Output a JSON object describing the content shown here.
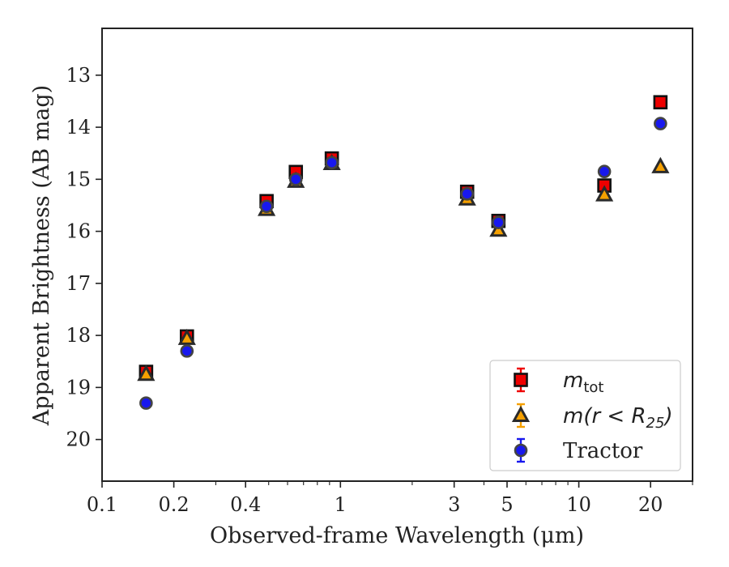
{
  "chart_data": {
    "type": "scatter",
    "x_scale": "log",
    "y_inverted": true,
    "xlim": [
      0.1,
      30
    ],
    "ylim": [
      12.1,
      20.8
    ],
    "x_ticks": [
      {
        "value": 0.1,
        "label": "0.1"
      },
      {
        "value": 0.2,
        "label": "0.2"
      },
      {
        "value": 0.4,
        "label": "0.4"
      },
      {
        "value": 1,
        "label": "1"
      },
      {
        "value": 3,
        "label": "3"
      },
      {
        "value": 5,
        "label": "5"
      },
      {
        "value": 10,
        "label": "10"
      },
      {
        "value": 20,
        "label": "20"
      }
    ],
    "y_ticks": [
      {
        "value": 13,
        "label": "13"
      },
      {
        "value": 14,
        "label": "14"
      },
      {
        "value": 15,
        "label": "15"
      },
      {
        "value": 16,
        "label": "16"
      },
      {
        "value": 17,
        "label": "17"
      },
      {
        "value": 18,
        "label": "18"
      },
      {
        "value": 19,
        "label": "19"
      },
      {
        "value": 20,
        "label": "20"
      }
    ],
    "xlabel": "Observed-frame Wavelength (μm)",
    "ylabel": "Apparent Brightness (AB mag)",
    "legend_position": "lower-right",
    "grid": false,
    "series": [
      {
        "legend": {
          "base": "m",
          "sub": "tot",
          "suffix": ""
        },
        "marker": "square",
        "color": "#ee0000",
        "edge": "#111111",
        "x": [
          0.153,
          0.227,
          0.49,
          0.65,
          0.92,
          3.4,
          4.6,
          12.8,
          22.0
        ],
        "y": [
          18.7,
          18.02,
          15.42,
          14.86,
          14.6,
          15.24,
          15.8,
          15.12,
          13.52
        ]
      },
      {
        "legend": {
          "base": "m(r < R",
          "sub": "25",
          "suffix": ")"
        },
        "marker": "triangle",
        "color": "#f5a000",
        "edge": "#2a2a2a",
        "x": [
          0.153,
          0.227,
          0.49,
          0.65,
          0.92,
          3.4,
          4.6,
          12.8,
          22.0
        ],
        "y": [
          18.75,
          18.06,
          15.58,
          15.04,
          14.7,
          15.38,
          15.98,
          15.3,
          14.76
        ]
      },
      {
        "legend": {
          "base": "Tractor",
          "sub": "",
          "suffix": ""
        },
        "marker": "circle",
        "color": "#1818ee",
        "edge": "#444444",
        "x": [
          0.153,
          0.227,
          0.49,
          0.65,
          0.92,
          3.4,
          4.6,
          12.8,
          22.0
        ],
        "y": [
          19.3,
          18.3,
          15.52,
          15.0,
          14.68,
          15.28,
          15.83,
          14.85,
          13.93
        ]
      }
    ]
  }
}
